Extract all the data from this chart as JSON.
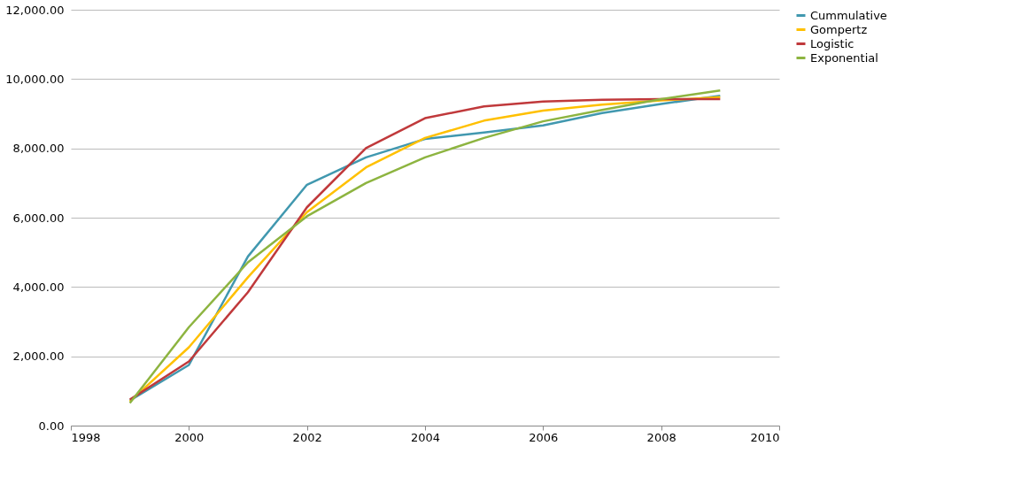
{
  "chart_data": {
    "type": "line",
    "x": [
      1999,
      2000,
      2001,
      2002,
      2003,
      2004,
      2005,
      2006,
      2007,
      2008,
      2009
    ],
    "series": [
      {
        "name": "Cummulative",
        "color": "#4198af",
        "values": [
          720,
          1750,
          4880,
          6950,
          7740,
          8270,
          8460,
          8660,
          9020,
          9280,
          9520
        ]
      },
      {
        "name": "Gompertz",
        "color": "#ffc000",
        "values": [
          700,
          2260,
          4280,
          6160,
          7450,
          8300,
          8800,
          9090,
          9260,
          9380,
          9480
        ]
      },
      {
        "name": "Logistic",
        "color": "#c0393b",
        "values": [
          750,
          1850,
          3850,
          6300,
          8010,
          8870,
          9210,
          9350,
          9400,
          9420,
          9420
        ]
      },
      {
        "name": "Exponential",
        "color": "#8db440",
        "values": [
          650,
          2840,
          4710,
          6040,
          7000,
          7740,
          8300,
          8780,
          9110,
          9420,
          9670
        ]
      }
    ],
    "xlim": [
      1998,
      2010
    ],
    "xticks": [
      1998,
      2000,
      2002,
      2004,
      2006,
      2008,
      2010
    ],
    "ylim": [
      0,
      12000
    ],
    "yticks": [
      {
        "value": 0,
        "label": "0.00"
      },
      {
        "value": 2000,
        "label": "2,000.00"
      },
      {
        "value": 4000,
        "label": "4,000.00"
      },
      {
        "value": 6000,
        "label": "6,000.00"
      },
      {
        "value": 8000,
        "label": "8,000.00"
      },
      {
        "value": 10000,
        "label": "10,000.00"
      },
      {
        "value": 12000,
        "label": "12,000.00"
      }
    ],
    "grid": "y",
    "legend": "right",
    "marker": "none",
    "line_style": "solid"
  }
}
